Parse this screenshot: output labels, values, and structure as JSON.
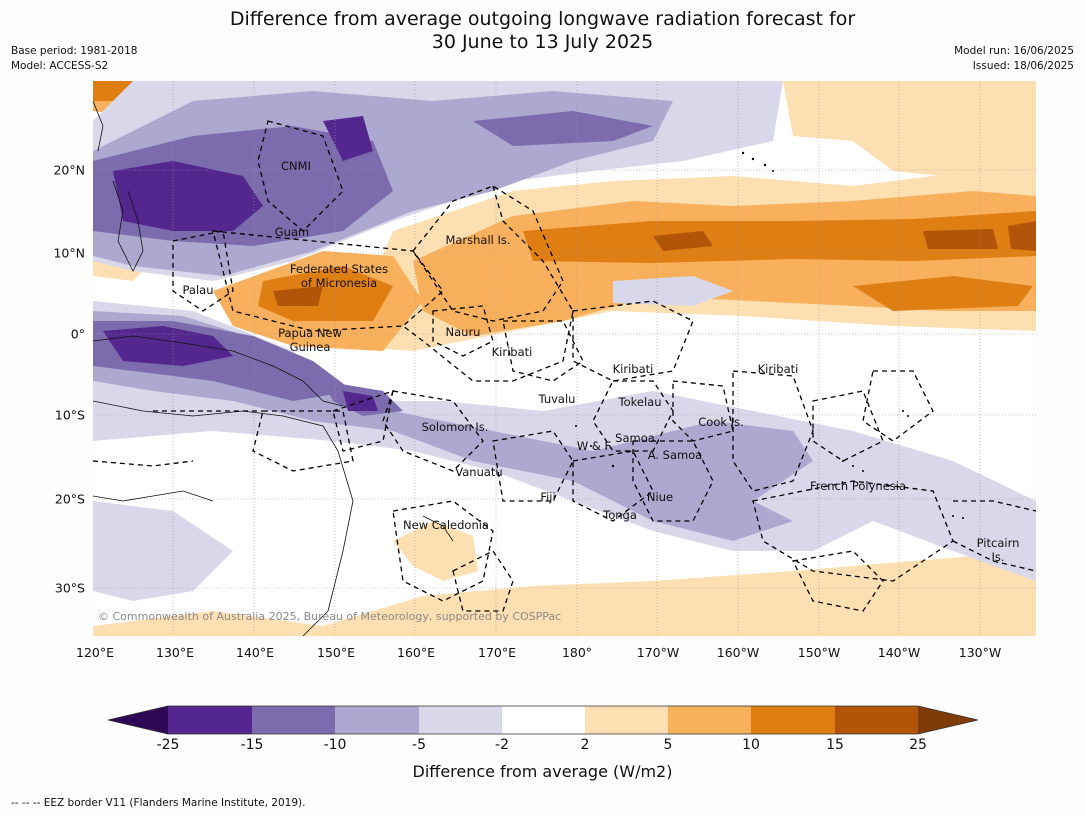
{
  "header": {
    "title_line1": "Difference from average outgoing longwave radiation forecast for",
    "title_line2": "30 June to 13 July 2025",
    "base_period": "Base period: 1981-2018",
    "model": "Model: ACCESS-S2",
    "model_run": "Model run: 16/06/2025",
    "issued": "Issued: 18/06/2025"
  },
  "map": {
    "longitude_labels": [
      "120°E",
      "130°E",
      "140°E",
      "150°E",
      "160°E",
      "170°E",
      "180°",
      "170°W",
      "160°W",
      "150°W",
      "140°W",
      "130°W"
    ],
    "latitude_labels": [
      "20°N",
      "10°N",
      "0°",
      "10°S",
      "20°S",
      "30°S"
    ],
    "places": [
      "CNMI",
      "Guam",
      "Marshall Is.",
      "Federated States",
      "of Micronesia",
      "Palau",
      "Papua New",
      "Guinea",
      "Nauru",
      "Kiribati",
      "Kiribati",
      "Kiribati",
      "Tuvalu",
      "Tokelau",
      "Solomon Is.",
      "Cook Is.",
      "Samoa",
      "W & F",
      "A. Samoa",
      "Vanuatu",
      "Fiji",
      "Niue",
      "Tonga",
      "French Polynesia",
      "New Caledonia",
      "Pitcairn",
      "Is."
    ],
    "copyright": "© Commonwealth of Australia 2025, Bureau of Meteorology, supported by COSPPac"
  },
  "legend": {
    "tick_labels": [
      "-25",
      "-15",
      "-10",
      "-5",
      "-2",
      "2",
      "5",
      "10",
      "15",
      "25"
    ],
    "colors": [
      "#2e0854",
      "#54278f",
      "#7c6cad",
      "#ada8d0",
      "#d9d8ea",
      "#ffffff",
      "#fddfb1",
      "#f8b05c",
      "#df7e12",
      "#b25508",
      "#7f3b08"
    ],
    "label": "Difference from average (W/m2)"
  },
  "footnote": "--  --  -- EEZ border V11 (Flanders Marine Institute, 2019)."
}
